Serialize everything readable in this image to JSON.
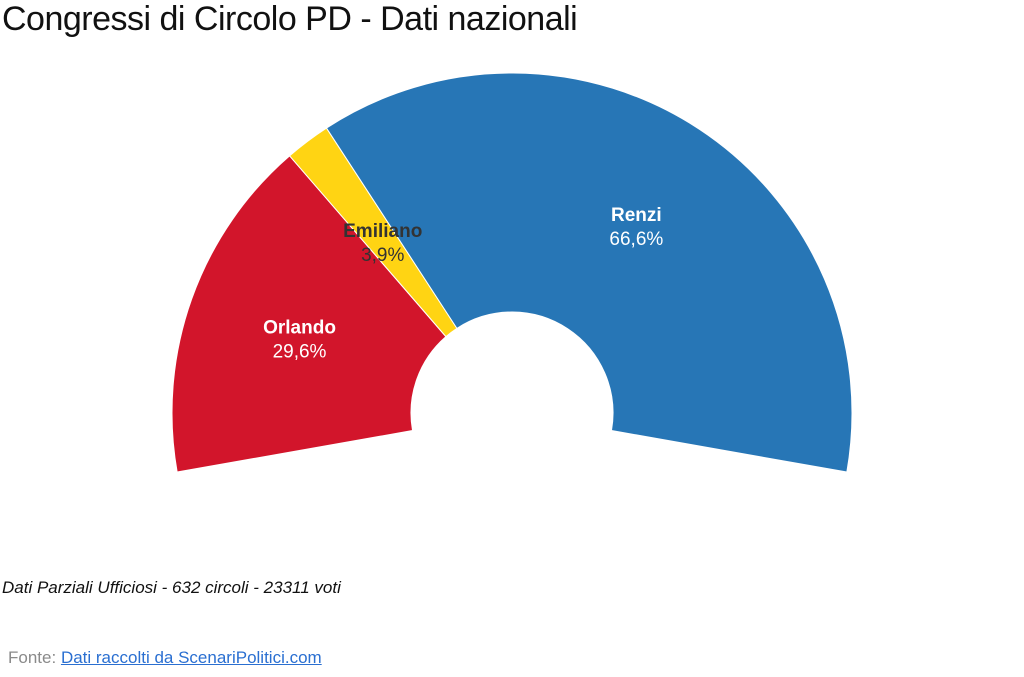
{
  "chart_data": {
    "type": "pie",
    "variant": "semi-donut",
    "title": "Congressi di Circolo PD - Dati nazionali",
    "slices": [
      {
        "name": "Orlando",
        "value": 29.6,
        "label": "29,6%",
        "color": "#d2152b"
      },
      {
        "name": "Emiliano",
        "value": 3.9,
        "label": "3,9%",
        "color": "#ffd413"
      },
      {
        "name": "Renzi",
        "value": 66.6,
        "label": "66,6%",
        "color": "#2776b6"
      }
    ],
    "label_colors": {
      "Orlando": "#ffffff",
      "Emiliano": "#333333",
      "Renzi": "#ffffff"
    }
  },
  "note": "Dati Parziali Ufficiosi - 632 circoli - 23311 voti",
  "source": {
    "prefix": "Fonte:",
    "link_text": "Dati raccolti da ScenariPolitici.com"
  }
}
